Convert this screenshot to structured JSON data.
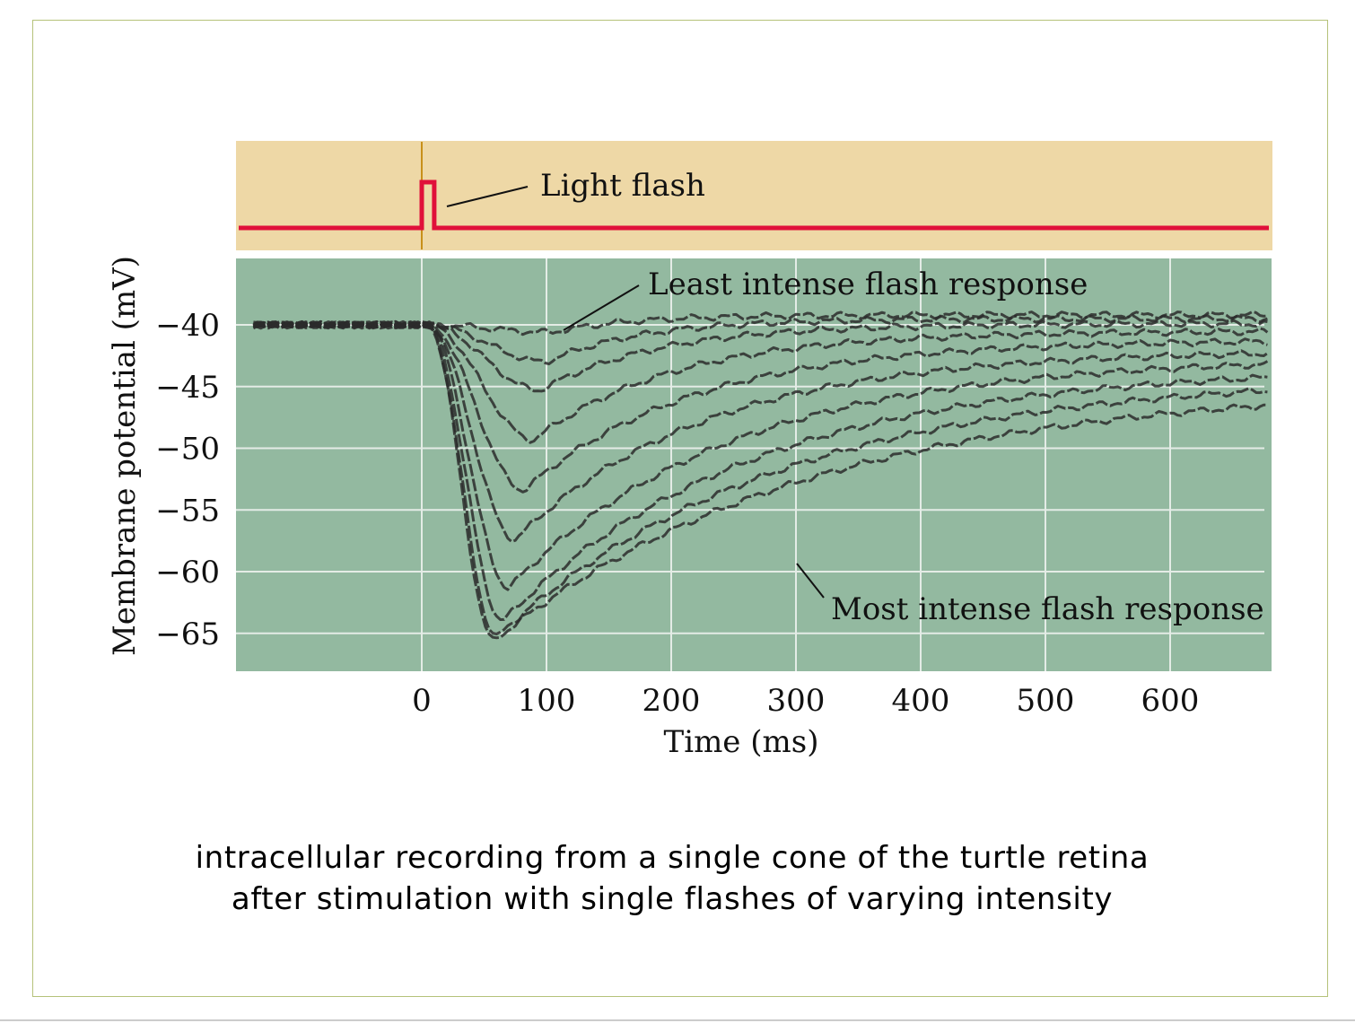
{
  "caption": {
    "line1": "intracellular recording  from a single cone of the turtle retina",
    "line2": "after stimulation with single flashes of varying intensity"
  },
  "colors": {
    "stimulus_bg": "#eed8a6",
    "plot_bg": "#93b9a0",
    "grid": "#e4ece6",
    "flash_trace": "#e0103a",
    "flash_marker": "#c8901a",
    "trace": "#2b2b2b"
  },
  "chart_data": {
    "type": "line",
    "title": "",
    "xlabel": "Time (ms)",
    "ylabel": "Membrane potential (mV)",
    "x_ticks": [
      0,
      100,
      200,
      300,
      400,
      500,
      600
    ],
    "y_ticks": [
      -40,
      -45,
      -50,
      -55,
      -60,
      -65
    ],
    "xlim": [
      -140,
      680
    ],
    "ylim": [
      -67.5,
      -34.5
    ],
    "grid": true,
    "stimulus": {
      "label": "Light flash",
      "onset_ms": 0,
      "offset_ms": 10
    },
    "annotations": [
      {
        "text": "Least intense flash response"
      },
      {
        "text": "Most intense flash response"
      }
    ],
    "baseline_mv": -40,
    "series": [
      {
        "peak_time_ms": 105,
        "peak_mv": -40.6,
        "recovery_ms": 140,
        "end_mv": -39.2
      },
      {
        "peak_time_ms": 100,
        "peak_mv": -43.0,
        "recovery_ms": 170,
        "end_mv": -39.5
      },
      {
        "peak_time_ms": 95,
        "peak_mv": -45.3,
        "recovery_ms": 210,
        "end_mv": -39.9
      },
      {
        "peak_time_ms": 90,
        "peak_mv": -49.3,
        "recovery_ms": 250,
        "end_mv": -40.5
      },
      {
        "peak_time_ms": 82,
        "peak_mv": -53.4,
        "recovery_ms": 300,
        "end_mv": -41.2
      },
      {
        "peak_time_ms": 75,
        "peak_mv": -57.4,
        "recovery_ms": 340,
        "end_mv": -42.0
      },
      {
        "peak_time_ms": 70,
        "peak_mv": -61.3,
        "recovery_ms": 390,
        "end_mv": -42.6
      },
      {
        "peak_time_ms": 65,
        "peak_mv": -64.0,
        "recovery_ms": 440,
        "end_mv": -43.3
      },
      {
        "peak_time_ms": 60,
        "peak_mv": -65.3,
        "recovery_ms": 500,
        "end_mv": -43.9
      },
      {
        "peak_time_ms": 58,
        "peak_mv": -65.6,
        "recovery_ms": 560,
        "end_mv": -44.7
      }
    ]
  }
}
